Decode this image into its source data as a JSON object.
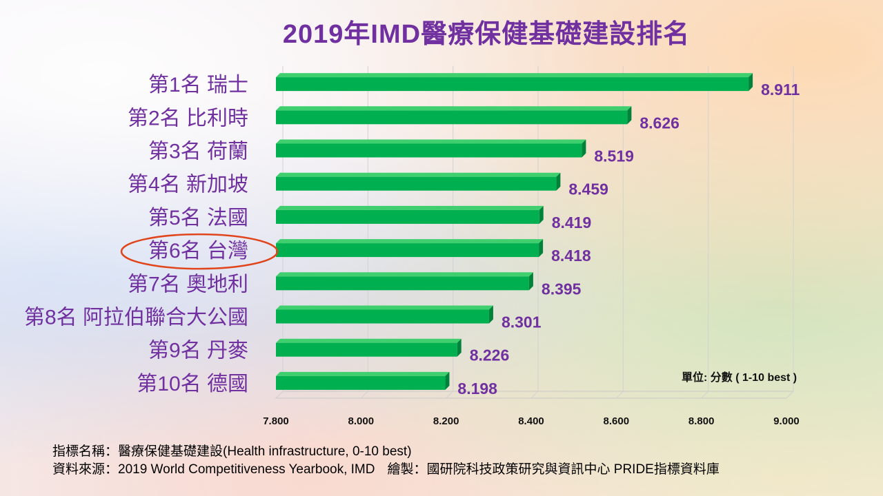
{
  "title": "2019年IMD醫療保健基礎建設排名",
  "unit_note": "單位: 分數 ( 1-10 best )",
  "footer": {
    "indicator_label": "指標名稱：",
    "indicator_value": "醫療保健基礎建設(Health  infrastructure,  0-10 best)",
    "source_label": "資料來源：",
    "source_value": "2019 World Competitiveness Yearbook,  IMD",
    "compiled_label": "繪製：",
    "compiled_value": "國研院科技政策研究與資訊中心  PRIDE指標資料庫"
  },
  "colors": {
    "bar": "#00B050",
    "bar_top": "#3fcf6e",
    "bar_side": "#00823a",
    "text_accent": "#7030A0",
    "highlight_ellipse": "#E0451B"
  },
  "chart_data": {
    "type": "bar",
    "orientation": "horizontal",
    "categories": [
      "第1名 瑞士",
      "第2名 比利時",
      "第3名 荷蘭",
      "第4名 新加坡",
      "第5名 法國",
      "第6名 台灣",
      "第7名 奧地利",
      "第8名  阿拉伯聯合大公國",
      "第9名 丹麥",
      "第10名 德國"
    ],
    "values": [
      8.911,
      8.626,
      8.519,
      8.459,
      8.419,
      8.418,
      8.395,
      8.301,
      8.226,
      8.198
    ],
    "value_labels": [
      "8.911",
      "8.626",
      "8.519",
      "8.459",
      "8.419",
      "8.418",
      "8.395",
      "8.301",
      "8.226",
      "8.198"
    ],
    "xlim": [
      7.8,
      9.0
    ],
    "x_ticks": [
      7.8,
      8.0,
      8.2,
      8.4,
      8.6,
      8.8,
      9.0
    ],
    "x_tick_labels": [
      "7.800",
      "8.000",
      "8.200",
      "8.400",
      "8.600",
      "8.800",
      "9.000"
    ],
    "grid": true,
    "legend": "none",
    "highlighted_category": "第6名 台灣"
  }
}
